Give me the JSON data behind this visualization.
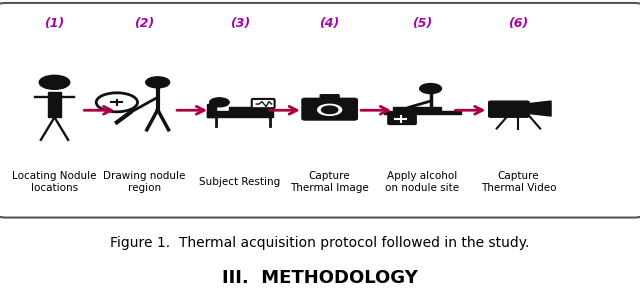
{
  "fig_width": 6.4,
  "fig_height": 2.94,
  "bg_color": "#ffffff",
  "box_bg": "#ffffff",
  "box_edge": "#555555",
  "step_color": "#aa00aa",
  "arrow_color": "#aa0044",
  "icon_color": "#111111",
  "steps": [
    "(1)",
    "(2)",
    "(3)",
    "(4)",
    "(5)",
    "(6)"
  ],
  "labels": [
    "Locating Nodule\nlocations",
    "Drawing nodule\nregion",
    "Subject Resting",
    "Capture\nThermal Image",
    "Apply alcohol\non nodule site",
    "Capture\nThermal Video"
  ],
  "caption": "Figure 1.  Thermal acquisition protocol followed in the study.",
  "section": "III.  METHODOLOGY",
  "caption_fontsize": 10,
  "section_fontsize": 13,
  "step_fontsize": 9,
  "label_fontsize": 7.5
}
